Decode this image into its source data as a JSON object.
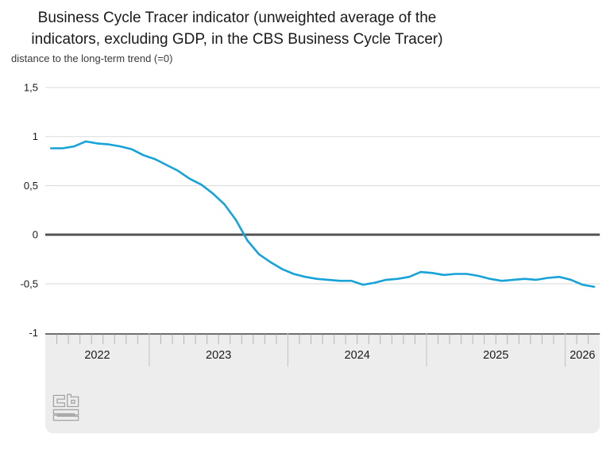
{
  "header": {
    "title_line1": "Business Cycle Tracer indicator (unweighted average of the",
    "title_line2": "indicators, excluding GDP, in the CBS Business Cycle Tracer)",
    "subtitle": "distance to the long-term trend (=0)"
  },
  "chart_data": {
    "type": "line",
    "title": "Business Cycle Tracer indicator (unweighted average of the indicators, excluding GDP, in the CBS Business Cycle Tracer)",
    "ylabel": "distance to the long-term trend (=0)",
    "ylim": [
      -1,
      1.5
    ],
    "yticks": {
      "values": [
        1.5,
        1,
        0.5,
        0,
        -0.5,
        -1
      ],
      "labels": [
        "1,5",
        "1",
        "0,5",
        "0",
        "-0,5",
        "-1"
      ]
    },
    "zero_baseline": 0,
    "grid": true,
    "legend": false,
    "x_axis": {
      "unit": "month",
      "start": "2022-04",
      "end": "2026-03",
      "year_segments": [
        {
          "label": "2022",
          "months": 9
        },
        {
          "label": "2023",
          "months": 12
        },
        {
          "label": "2024",
          "months": 12
        },
        {
          "label": "2025",
          "months": 12
        },
        {
          "label": "2026",
          "months": 3
        }
      ]
    },
    "series": [
      {
        "name": "Business Cycle Tracer indicator",
        "color": "#17a2d8",
        "start_month": "2022-04",
        "values": [
          0.88,
          0.88,
          0.9,
          0.95,
          0.93,
          0.92,
          0.9,
          0.87,
          0.81,
          0.77,
          0.71,
          0.65,
          0.57,
          0.51,
          0.42,
          0.31,
          0.15,
          -0.06,
          -0.2,
          -0.28,
          -0.35,
          -0.4,
          -0.43,
          -0.45,
          -0.46,
          -0.47,
          -0.47,
          -0.51,
          -0.49,
          -0.46,
          -0.45,
          -0.43,
          -0.38,
          -0.39,
          -0.41,
          -0.4,
          -0.4,
          -0.42,
          -0.45,
          -0.47,
          -0.46,
          -0.45,
          -0.46,
          -0.44,
          -0.43,
          -0.46,
          -0.51,
          -0.53
        ]
      }
    ]
  },
  "branding": {
    "logo": "cbs-logo"
  },
  "colors": {
    "series_line": "#17a2d8",
    "zero_line": "#545454",
    "gridline": "#dadada",
    "axis_band_fill": "#ededed",
    "axis_band_border": "#707070",
    "month_tick": "#b4b4b4",
    "year_separator": "#c8c8c8",
    "text": "#1a1a1a"
  }
}
